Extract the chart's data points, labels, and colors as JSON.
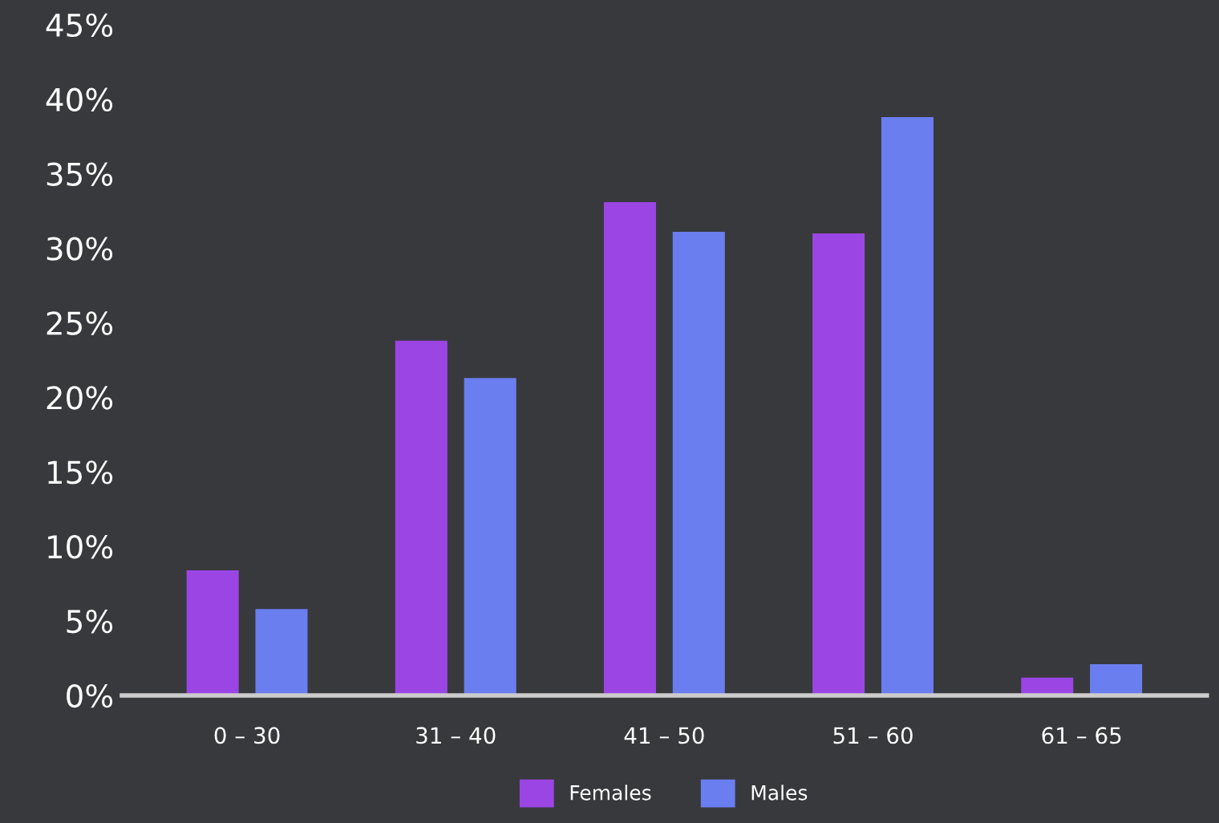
{
  "chart_data": {
    "type": "bar",
    "categories": [
      "0 – 30",
      "31 – 40",
      "41 – 50",
      "51 – 60",
      "61 – 65"
    ],
    "series": [
      {
        "name": "Females",
        "color": "#9b45e4",
        "values": [
          8.4,
          23.8,
          33.1,
          31.0,
          1.2
        ]
      },
      {
        "name": "Males",
        "color": "#6a7ef0",
        "values": [
          5.8,
          21.3,
          31.1,
          38.8,
          2.1
        ]
      }
    ],
    "ylim": [
      0,
      45
    ],
    "yticks": [
      {
        "value": 0,
        "label": "0%"
      },
      {
        "value": 5,
        "label": "5%"
      },
      {
        "value": 10,
        "label": "10%"
      },
      {
        "value": 15,
        "label": "15%"
      },
      {
        "value": 20,
        "label": "20%"
      },
      {
        "value": 25,
        "label": "25%"
      },
      {
        "value": 30,
        "label": "30%"
      },
      {
        "value": 35,
        "label": "35%"
      },
      {
        "value": 40,
        "label": "40%"
      },
      {
        "value": 45,
        "label": "45%"
      }
    ],
    "grid": false,
    "legend": "bottom"
  }
}
